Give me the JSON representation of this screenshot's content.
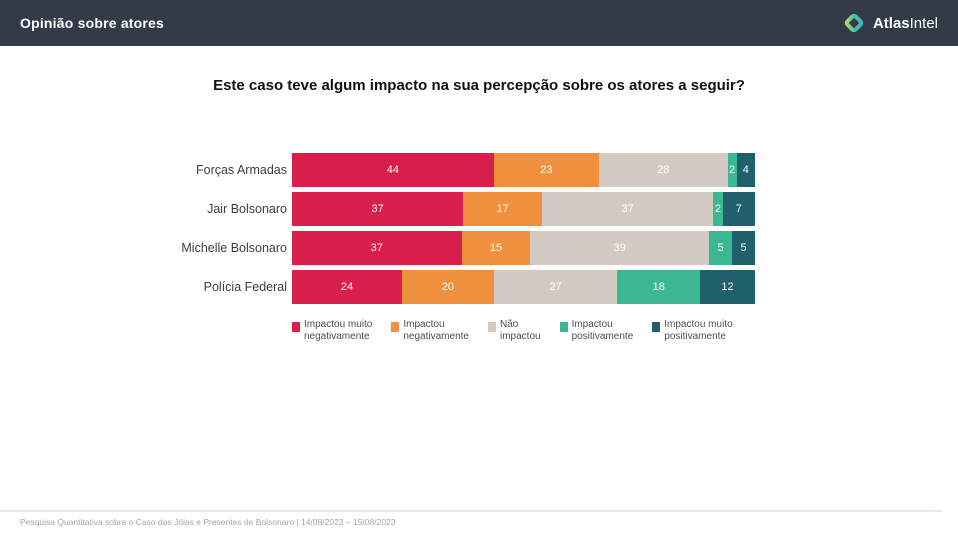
{
  "header": {
    "title": "Opinião sobre atores",
    "brand_atlas": "Atlas",
    "brand_intel": "Intel"
  },
  "chart_data": {
    "type": "bar",
    "stacked": true,
    "orientation": "horizontal",
    "title": "Este caso teve algum impacto na sua percepção sobre os atores a seguir?",
    "categories": [
      "Forças Armadas",
      "Jair Bolsonaro",
      "Michelle Bolsonaro",
      "Polícia Federal"
    ],
    "series": [
      {
        "name": "Impactou muito negativamente",
        "color": "#d81e4b",
        "values": [
          44,
          37,
          37,
          24
        ]
      },
      {
        "name": "Impactou negativamente",
        "color": "#f0913f",
        "values": [
          23,
          17,
          15,
          20
        ]
      },
      {
        "name": "Não impactou",
        "color": "#d2cac3",
        "values": [
          28,
          37,
          39,
          27
        ]
      },
      {
        "name": "Impactou positivamente",
        "color": "#3bb794",
        "values": [
          2,
          2,
          5,
          18
        ]
      },
      {
        "name": "Impactou muito positivamente",
        "color": "#20606c",
        "values": [
          4,
          7,
          5,
          12
        ]
      }
    ],
    "value_range": [
      0,
      100
    ],
    "value_labels": "inside, white",
    "grid": false,
    "legend_position": "bottom",
    "legend_lines": [
      [
        "Impactou muito",
        "negativamente"
      ],
      [
        "Impactou",
        "negativamente"
      ],
      [
        "Não",
        "impactou"
      ],
      [
        "Impactou",
        "positivamente"
      ],
      [
        "Impactou muito",
        "positivamente"
      ]
    ]
  },
  "footer": {
    "source": "Pesquisa Quantitativa sobre o Caso das Jóias e Presentes de Bolsonaro | 14/08/2023 – 15/08/2023"
  }
}
